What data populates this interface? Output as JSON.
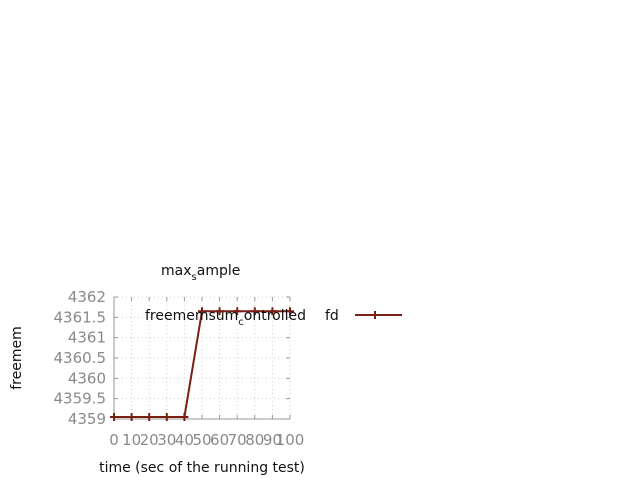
{
  "chart_data": {
    "type": "line",
    "title": {
      "prefix": "max",
      "sub": "s",
      "suffix": "ample"
    },
    "xlabel": "time (sec of the running test)",
    "ylabel": "freemem",
    "xlim": [
      0,
      100
    ],
    "ylim": [
      4359,
      4362
    ],
    "x_ticks": [
      "0",
      "10",
      "20",
      "30",
      "40",
      "50",
      "60",
      "70",
      "80",
      "90",
      "100"
    ],
    "y_ticks": [
      "4359",
      "4359.5",
      "4360",
      "4360.5",
      "4361",
      "4361.5",
      "4362"
    ],
    "grid": true,
    "legend_position": "top-right",
    "series": [
      {
        "name": {
          "prefix": "freememsum",
          "sub": "c",
          "suffix": "ontrolled",
          "tail": "fd"
        },
        "color": "#7a1f14",
        "marker": "plus",
        "x": [
          0,
          10,
          20,
          30,
          40,
          50,
          60,
          70,
          80,
          90,
          100
        ],
        "y": [
          4359.05,
          4359.05,
          4359.05,
          4359.05,
          4359.05,
          4361.65,
          4361.65,
          4361.65,
          4361.65,
          4361.65,
          4361.65
        ]
      }
    ]
  }
}
